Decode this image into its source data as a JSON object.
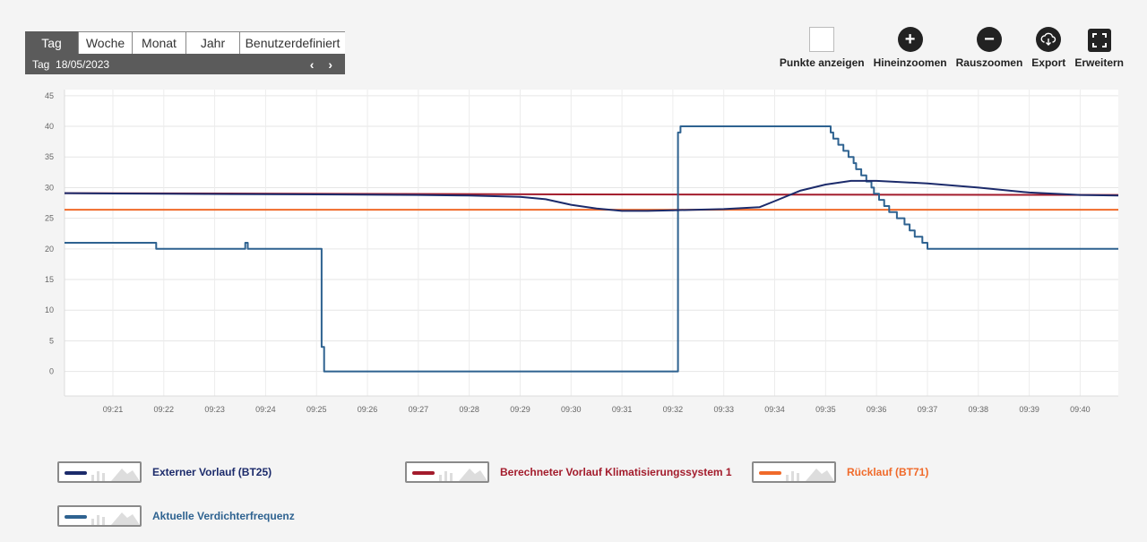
{
  "period_tabs": [
    {
      "label": "Tag",
      "active": true
    },
    {
      "label": "Woche",
      "active": false
    },
    {
      "label": "Monat",
      "active": false
    },
    {
      "label": "Jahr",
      "active": false
    },
    {
      "label": "Benutzerdefiniert",
      "active": false
    }
  ],
  "date_label": "Tag  18/05/2023",
  "nav_arrows": "‹ ›",
  "toolbar": {
    "show_points": "Punkte anzeigen",
    "zoom_in": "Hineinzoomen",
    "zoom_out": "Rauszoomen",
    "export": "Export",
    "expand": "Erweitern"
  },
  "chart_data": {
    "type": "line",
    "ylim": [
      -4,
      46
    ],
    "yticks": [
      0,
      5,
      10,
      15,
      20,
      25,
      30,
      35,
      40,
      45
    ],
    "xlim_minutes": [
      20.05,
      40.75
    ],
    "xtick_labels": [
      "09:21",
      "09:22",
      "09:23",
      "09:24",
      "09:25",
      "09:26",
      "09:27",
      "09:28",
      "09:29",
      "09:30",
      "09:31",
      "09:32",
      "09:33",
      "09:34",
      "09:35",
      "09:36",
      "09:37",
      "09:38",
      "09:39",
      "09:40"
    ],
    "xticks_minutes": [
      21,
      22,
      23,
      24,
      25,
      26,
      27,
      28,
      29,
      30,
      31,
      32,
      33,
      34,
      35,
      36,
      37,
      38,
      39,
      40
    ],
    "series": [
      {
        "name": "Externer Vorlauf (BT25)",
        "color": "#1c2b6b",
        "step": false,
        "points": [
          [
            20.05,
            29.1
          ],
          [
            22,
            29.0
          ],
          [
            25,
            28.9
          ],
          [
            27,
            28.8
          ],
          [
            28,
            28.7
          ],
          [
            29,
            28.5
          ],
          [
            29.5,
            28.1
          ],
          [
            30,
            27.2
          ],
          [
            30.5,
            26.6
          ],
          [
            31,
            26.2
          ],
          [
            31.5,
            26.2
          ],
          [
            32,
            26.3
          ],
          [
            33,
            26.5
          ],
          [
            33.7,
            26.8
          ],
          [
            34,
            27.8
          ],
          [
            34.5,
            29.5
          ],
          [
            35,
            30.5
          ],
          [
            35.5,
            31.1
          ],
          [
            36,
            31.1
          ],
          [
            37,
            30.7
          ],
          [
            38,
            30.0
          ],
          [
            39,
            29.2
          ],
          [
            40,
            28.8
          ],
          [
            40.75,
            28.7
          ]
        ]
      },
      {
        "name": "Berechneter Vorlauf Klimatisierungssystem 1",
        "color": "#a31c2c",
        "step": false,
        "points": [
          [
            20.05,
            29.1
          ],
          [
            30,
            28.9
          ],
          [
            40.75,
            28.8
          ]
        ]
      },
      {
        "name": "Rücklauf (BT71)",
        "color": "#f06a2a",
        "step": false,
        "points": [
          [
            20.05,
            26.4
          ],
          [
            40.75,
            26.4
          ]
        ]
      },
      {
        "name": "Aktuelle Verdichterfrequenz",
        "color": "#2e6290",
        "step": true,
        "points": [
          [
            20.05,
            21
          ],
          [
            21.85,
            21
          ],
          [
            21.85,
            20
          ],
          [
            23.6,
            20
          ],
          [
            23.6,
            21
          ],
          [
            23.65,
            21
          ],
          [
            23.65,
            20
          ],
          [
            25.1,
            20
          ],
          [
            25.1,
            4
          ],
          [
            25.15,
            4
          ],
          [
            25.15,
            0
          ],
          [
            32.1,
            0
          ],
          [
            32.1,
            39
          ],
          [
            32.15,
            39
          ],
          [
            32.15,
            40
          ],
          [
            35.05,
            40
          ],
          [
            35.1,
            39
          ],
          [
            35.15,
            38
          ],
          [
            35.25,
            37
          ],
          [
            35.35,
            36
          ],
          [
            35.45,
            35
          ],
          [
            35.55,
            34
          ],
          [
            35.6,
            33
          ],
          [
            35.7,
            32
          ],
          [
            35.8,
            31
          ],
          [
            35.9,
            30
          ],
          [
            35.95,
            29
          ],
          [
            36.05,
            28
          ],
          [
            36.15,
            27
          ],
          [
            36.25,
            26
          ],
          [
            36.4,
            25
          ],
          [
            36.55,
            24
          ],
          [
            36.65,
            23
          ],
          [
            36.75,
            22
          ],
          [
            36.9,
            21
          ],
          [
            37,
            20
          ],
          [
            40.75,
            20
          ]
        ]
      }
    ]
  },
  "legend": [
    {
      "label": "Externer Vorlauf (BT25)",
      "color": "#1c2b6b"
    },
    {
      "label": "Berechneter Vorlauf Klimatisierungssystem 1",
      "color": "#a31c2c"
    },
    {
      "label": "Rücklauf (BT71)",
      "color": "#f06a2a"
    },
    {
      "label": "Aktuelle Verdichterfrequenz",
      "color": "#2e6290"
    }
  ]
}
